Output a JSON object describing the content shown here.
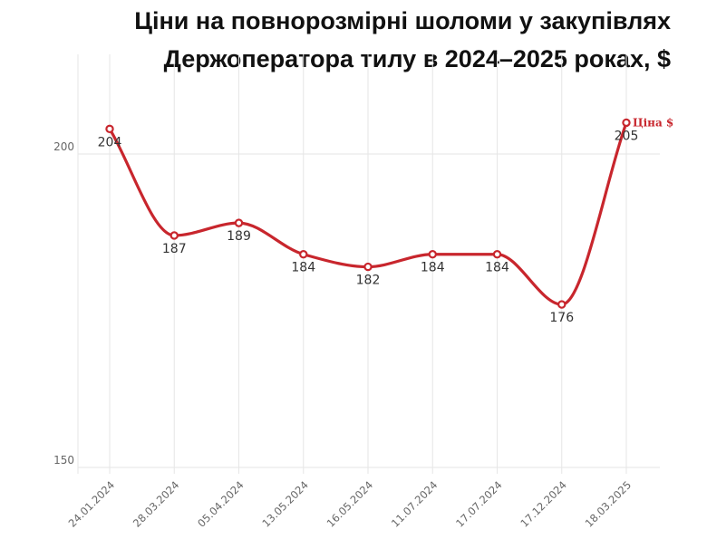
{
  "title_line1": "Ціни на повнорозмірні шоломи у закупівлях",
  "title_line2": "Держоператора тилу в 2024–2025 роках, $",
  "chart_data": {
    "type": "line",
    "title": "Ціни на повнорозмірні шоломи у закупівлях Держоператора тилу в 2024–2025 роках, $",
    "categories": [
      "24.01.2024",
      "28.03.2024",
      "05.04.2024",
      "13.05.2024",
      "16.05.2024",
      "11.07.2024",
      "17.07.2024",
      "17.12.2024",
      "18.03.2025"
    ],
    "series": [
      {
        "name": "Ціна $",
        "values": [
          204,
          187,
          189,
          184,
          182,
          184,
          184,
          176,
          205
        ],
        "labels": [
          "204",
          "187",
          "189",
          "184",
          "182",
          "184",
          "184",
          "176",
          "205"
        ]
      }
    ],
    "yticks": [
      "150",
      "200"
    ],
    "ylim": [
      148,
      214
    ],
    "xlabel": "",
    "ylabel": "",
    "grid": true,
    "legend": "end-of-line",
    "colors": {
      "series": "#c8262d",
      "grid": "#e6e6e6",
      "text": "#333333"
    }
  }
}
